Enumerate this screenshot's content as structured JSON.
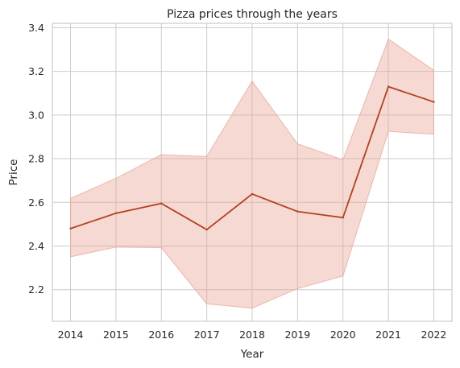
{
  "chart_data": {
    "type": "line",
    "title": "Pizza prices through the years",
    "xlabel": "Year",
    "ylabel": "Price",
    "x": [
      2014,
      2015,
      2016,
      2017,
      2018,
      2019,
      2020,
      2021,
      2022
    ],
    "x_tick_labels": [
      "2014",
      "2015",
      "2016",
      "2017",
      "2018",
      "2019",
      "2020",
      "2021",
      "2022"
    ],
    "y_ticks": [
      2.2,
      2.4,
      2.6,
      2.8,
      3.0,
      3.2,
      3.4
    ],
    "y_tick_labels": [
      "2.2",
      "2.4",
      "2.6",
      "2.8",
      "3.0",
      "3.2",
      "3.4"
    ],
    "xlim": [
      2013.6,
      2022.4
    ],
    "ylim": [
      2.055,
      3.42
    ],
    "grid": true,
    "series": [
      {
        "values": [
          2.48,
          2.55,
          2.595,
          2.475,
          2.638,
          2.558,
          2.53,
          3.13,
          3.06
        ],
        "ci_lower": [
          2.35,
          2.395,
          2.392,
          2.135,
          2.115,
          2.205,
          2.262,
          2.925,
          2.912
        ],
        "ci_upper": [
          2.618,
          2.71,
          2.818,
          2.81,
          3.155,
          2.868,
          2.795,
          3.348,
          3.205
        ],
        "color": "#b5401f",
        "band_color": "#e8a594"
      }
    ]
  }
}
